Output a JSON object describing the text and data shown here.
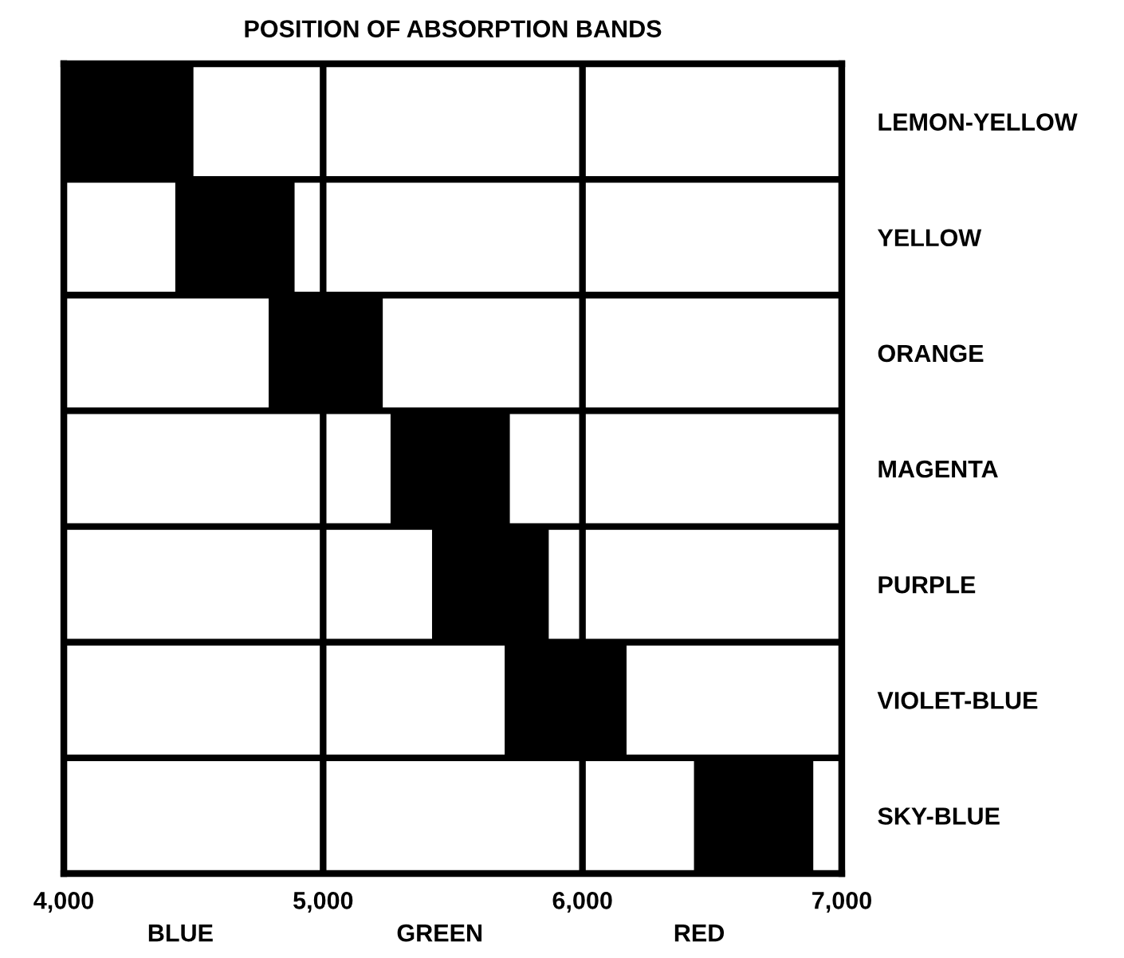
{
  "chart_data": {
    "type": "bar",
    "orientation": "horizontal",
    "title": "POSITION OF ABSORPTION BANDS",
    "categories": [
      "LEMON-YELLOW",
      "YELLOW",
      "ORANGE",
      "MAGENTA",
      "PURPLE",
      "VIOLET-BLUE",
      "SKY-BLUE"
    ],
    "base": [
      4000,
      4430,
      4790,
      5260,
      5420,
      5700,
      6430
    ],
    "values": [
      500,
      460,
      440,
      460,
      450,
      470,
      460
    ],
    "color": "#000000",
    "xlim": [
      4000,
      7000
    ],
    "xticks": [
      {
        "value": 4000,
        "label": "4,000"
      },
      {
        "value": 5000,
        "label": "5,000"
      },
      {
        "value": 6000,
        "label": "6,000"
      },
      {
        "value": 7000,
        "label": "7,000"
      }
    ],
    "grid": true,
    "annotations": [
      "BLUE",
      "GREEN",
      "RED"
    ]
  }
}
